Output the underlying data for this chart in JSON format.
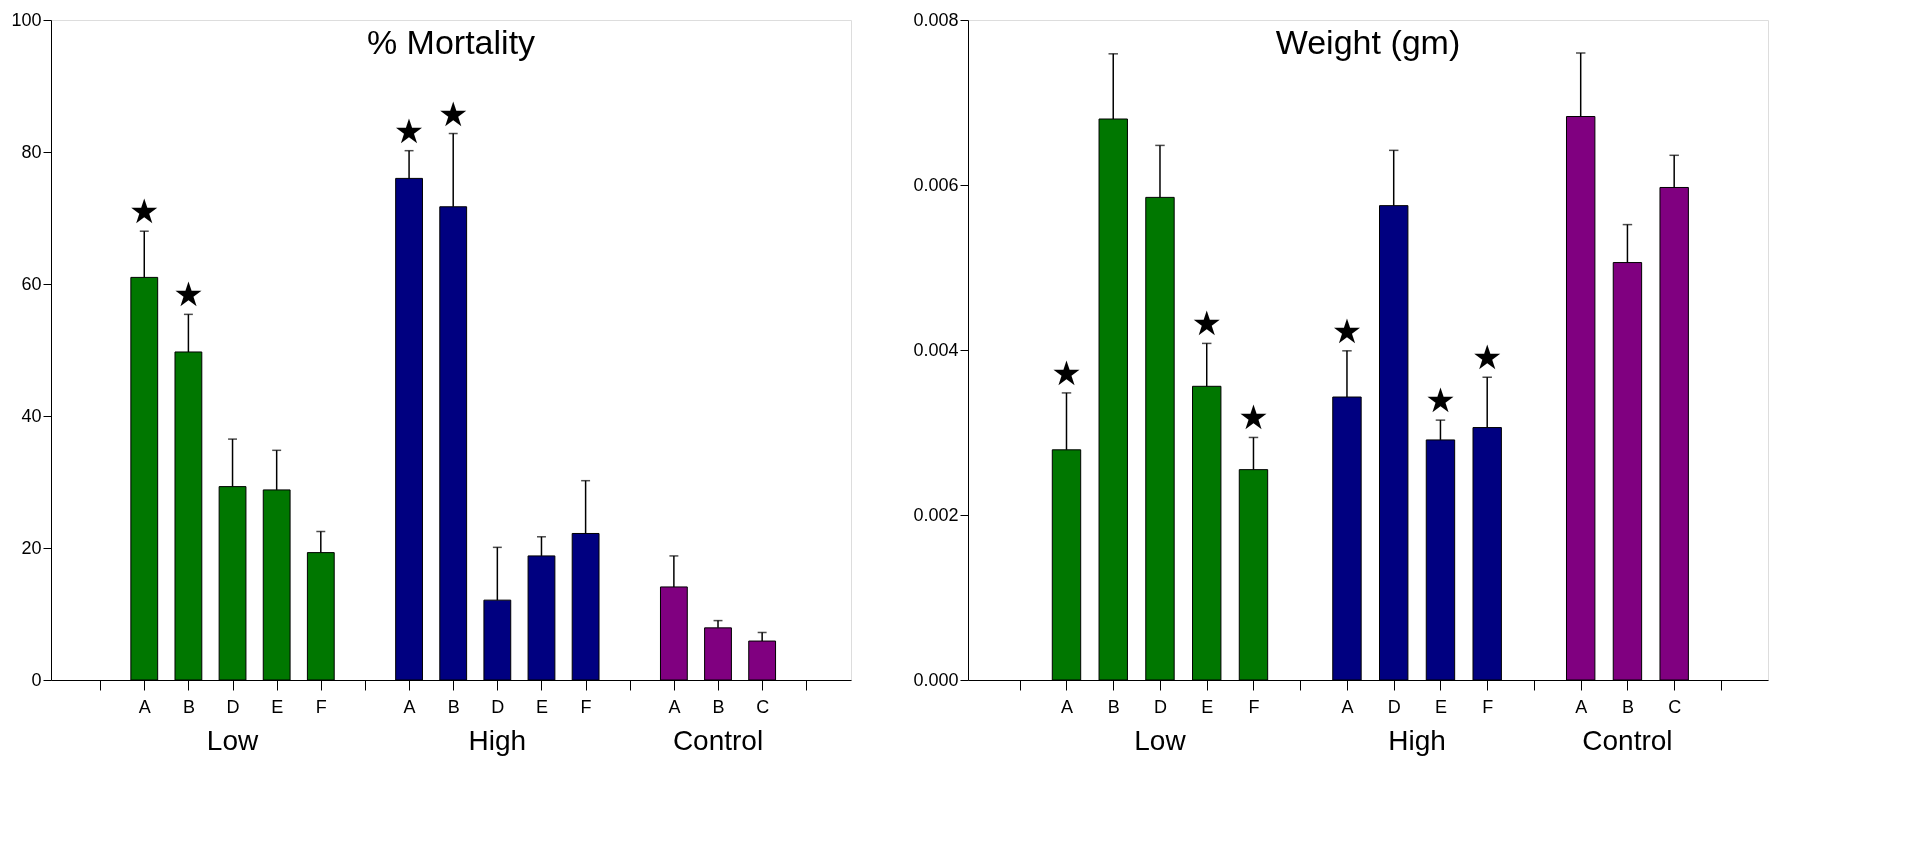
{
  "chart_data": [
    {
      "type": "bar",
      "title": "% Mortality",
      "categories": [
        null,
        "A",
        "B",
        "D",
        "E",
        "F",
        null,
        "A",
        "B",
        "D",
        "E",
        "F",
        null,
        "A",
        "B",
        "C",
        null
      ],
      "series": [
        {
          "name": "Low",
          "color": "#007700",
          "values": [
            null,
            61,
            49.7,
            29.3,
            28.8,
            19.3,
            null,
            null,
            null,
            null,
            null,
            null,
            null,
            null,
            null,
            null,
            null
          ],
          "errors": [
            null,
            [
              61,
              68
            ],
            [
              49.7,
              55.4
            ],
            [
              29.3,
              36.5
            ],
            [
              28.8,
              34.8
            ],
            [
              19.3,
              22.5
            ],
            null,
            null,
            null,
            null,
            null,
            null,
            null,
            null,
            null,
            null,
            null
          ],
          "value_labels": [
            null,
            "★",
            "★",
            null,
            null,
            null,
            null,
            null,
            null,
            null,
            null,
            null,
            null,
            null,
            null,
            null,
            null
          ]
        },
        {
          "name": "High",
          "color": "#000080",
          "values": [
            null,
            null,
            null,
            null,
            null,
            null,
            null,
            76,
            71.7,
            12.1,
            18.8,
            22.2,
            null,
            null,
            null,
            null,
            null
          ],
          "errors": [
            null,
            null,
            null,
            null,
            null,
            null,
            null,
            [
              76,
              80.2
            ],
            [
              71.7,
              82.8
            ],
            [
              12.1,
              20.1
            ],
            [
              18.8,
              21.7
            ],
            [
              22.2,
              30.2
            ],
            null,
            null,
            null,
            null,
            null
          ],
          "value_labels": [
            null,
            null,
            null,
            null,
            null,
            null,
            null,
            "★",
            "★",
            null,
            null,
            null,
            null,
            null,
            null,
            null,
            null
          ]
        },
        {
          "name": "Control",
          "color": "#800080",
          "values": [
            null,
            null,
            null,
            null,
            null,
            null,
            null,
            null,
            null,
            null,
            null,
            null,
            null,
            14.1,
            7.9,
            5.9,
            null
          ],
          "errors": [
            null,
            null,
            null,
            null,
            null,
            null,
            null,
            null,
            null,
            null,
            null,
            null,
            null,
            [
              14.1,
              18.8
            ],
            [
              7.9,
              9.0
            ],
            [
              5.9,
              7.2
            ],
            null
          ]
        }
      ],
      "ylim": [
        0,
        100
      ],
      "yticks": [
        0,
        20,
        40,
        60,
        80,
        100
      ],
      "grid": false,
      "legend": false
    },
    {
      "type": "bar",
      "title": "Weight (gm)",
      "categories": [
        null,
        "A",
        "B",
        "D",
        "E",
        "F",
        null,
        "A",
        "D",
        "E",
        "F",
        null,
        "A",
        "B",
        "C",
        null
      ],
      "series": [
        {
          "name": "Low",
          "color": "#007700",
          "values": [
            null,
            0.00279,
            0.0068,
            0.00585,
            0.00356,
            0.00255,
            null,
            null,
            null,
            null,
            null,
            null,
            null,
            null,
            null,
            null
          ],
          "errors": [
            null,
            [
              0.00279,
              0.00348
            ],
            [
              0.0068,
              0.00759
            ],
            [
              0.00585,
              0.00648
            ],
            [
              0.00356,
              0.00408
            ],
            [
              0.00255,
              0.00294
            ],
            null,
            null,
            null,
            null,
            null,
            null,
            null,
            null,
            null,
            null
          ],
          "value_labels": [
            null,
            "★",
            null,
            null,
            "★",
            "★",
            null,
            null,
            null,
            null,
            null,
            null,
            null,
            null,
            null,
            null
          ]
        },
        {
          "name": "High",
          "color": "#000080",
          "values": [
            null,
            null,
            null,
            null,
            null,
            null,
            null,
            0.00343,
            0.00575,
            0.00291,
            0.00306,
            null,
            null,
            null,
            null,
            null
          ],
          "errors": [
            null,
            null,
            null,
            null,
            null,
            null,
            null,
            [
              0.00343,
              0.00399
            ],
            [
              0.00575,
              0.00642
            ],
            [
              0.00291,
              0.00315
            ],
            [
              0.00306,
              0.00367
            ],
            null,
            null,
            null,
            null,
            null
          ],
          "value_labels": [
            null,
            null,
            null,
            null,
            null,
            null,
            null,
            "★",
            null,
            "★",
            "★",
            null,
            null,
            null,
            null,
            null
          ]
        },
        {
          "name": "Control",
          "color": "#800080",
          "values": [
            null,
            null,
            null,
            null,
            null,
            null,
            null,
            null,
            null,
            null,
            null,
            null,
            0.00683,
            0.00506,
            0.00597,
            null
          ],
          "errors": [
            null,
            null,
            null,
            null,
            null,
            null,
            null,
            null,
            null,
            null,
            null,
            null,
            [
              0.00683,
              0.0076
            ],
            [
              0.00506,
              0.00552
            ],
            [
              0.00597,
              0.00636
            ],
            null
          ]
        }
      ],
      "ylim": [
        0,
        0.008
      ],
      "yticks": [
        {
          "value": 0,
          "label": "0.000"
        },
        {
          "value": 0.002,
          "label": "0.002"
        },
        {
          "value": 0.004,
          "label": "0.004"
        },
        {
          "value": 0.006,
          "label": "0.006"
        },
        {
          "value": 0.008,
          "label": "0.008"
        }
      ],
      "grid": false,
      "legend": false
    }
  ]
}
